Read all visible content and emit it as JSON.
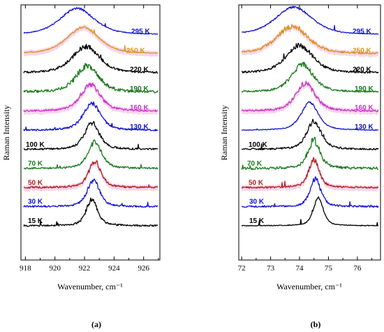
{
  "colors": {
    "295 K": "#1010d8",
    "250 K": "#d9941a",
    "220 K": "#000000",
    "190 K": "#1a7a1a",
    "160 K": "#cc33cc",
    "130 K": "#1010d8",
    "100 K": "#000000",
    "70 K": "#1a7a1a",
    "50 K": "#b02020",
    "30 K": "#1010d8",
    "15 K": "#000000",
    "highlight": "#f6cce6"
  },
  "chart_data": [
    {
      "type": "line",
      "panel": "(a)",
      "xlabel": "Wavenumber, cm⁻¹",
      "ylabel": "Raman Intensity",
      "xlim": [
        917.7,
        927.1
      ],
      "xticks": [
        918,
        920,
        922,
        924,
        926
      ],
      "tick_labels": [
        "918",
        "920",
        "922",
        "924",
        "926"
      ],
      "yticks": "none",
      "offset_stacked": true,
      "series": [
        {
          "name": "295 K",
          "center": 921.5,
          "width": 1.4,
          "noise": "low",
          "highlight": false
        },
        {
          "name": "250 K",
          "center": 921.9,
          "width": 1.3,
          "noise": "low",
          "highlight": true
        },
        {
          "name": "220 K",
          "center": 922.1,
          "width": 1.1,
          "noise": "medium",
          "highlight": false
        },
        {
          "name": "190 K",
          "center": 922.2,
          "width": 0.9,
          "noise": "high",
          "highlight": false
        },
        {
          "name": "160 K",
          "center": 922.4,
          "width": 0.8,
          "noise": "medium",
          "highlight": true
        },
        {
          "name": "130 K",
          "center": 922.5,
          "width": 0.7,
          "noise": "medium",
          "highlight": false
        },
        {
          "name": "100 K",
          "center": 922.5,
          "width": 0.6,
          "noise": "medium",
          "highlight": false
        },
        {
          "name": "70 K",
          "center": 922.7,
          "width": 0.55,
          "noise": "medium",
          "highlight": false
        },
        {
          "name": "50 K",
          "center": 922.7,
          "width": 0.5,
          "noise": "medium",
          "highlight": true
        },
        {
          "name": "30 K",
          "center": 922.6,
          "width": 0.5,
          "noise": "medium",
          "highlight": false
        },
        {
          "name": "15 K",
          "center": 922.5,
          "width": 0.45,
          "noise": "medium",
          "highlight": false
        }
      ]
    },
    {
      "type": "line",
      "panel": "(b)",
      "xlabel": "Wavenumber, cm⁻¹",
      "ylabel": "Raman Intensity",
      "xlim": [
        71.9,
        76.8
      ],
      "xticks": [
        72,
        73,
        74,
        75,
        76
      ],
      "tick_labels": [
        "72",
        "73",
        "74",
        "75",
        "76"
      ],
      "yticks": "none",
      "offset_stacked": true,
      "series": [
        {
          "name": "295 K",
          "center": 73.8,
          "width": 0.75,
          "noise": "low",
          "highlight": false
        },
        {
          "name": "250 K",
          "center": 73.75,
          "width": 0.65,
          "noise": "medium",
          "highlight": true
        },
        {
          "name": "220 K",
          "center": 74.0,
          "width": 0.55,
          "noise": "medium",
          "highlight": false
        },
        {
          "name": "190 K",
          "center": 74.1,
          "width": 0.45,
          "noise": "medium",
          "highlight": false
        },
        {
          "name": "160 K",
          "center": 74.2,
          "width": 0.4,
          "noise": "medium",
          "highlight": true
        },
        {
          "name": "130 K",
          "center": 74.35,
          "width": 0.35,
          "noise": "low",
          "highlight": false
        },
        {
          "name": "100 K",
          "center": 74.5,
          "width": 0.3,
          "noise": "medium",
          "highlight": false
        },
        {
          "name": "70 K",
          "center": 74.5,
          "width": 0.25,
          "noise": "high",
          "highlight": false
        },
        {
          "name": "50 K",
          "center": 74.5,
          "width": 0.22,
          "noise": "medium",
          "highlight": true
        },
        {
          "name": "30 K",
          "center": 74.55,
          "width": 0.22,
          "noise": "medium",
          "highlight": false
        },
        {
          "name": "15 K",
          "center": 74.65,
          "width": 0.2,
          "noise": "low",
          "highlight": false
        }
      ]
    }
  ]
}
